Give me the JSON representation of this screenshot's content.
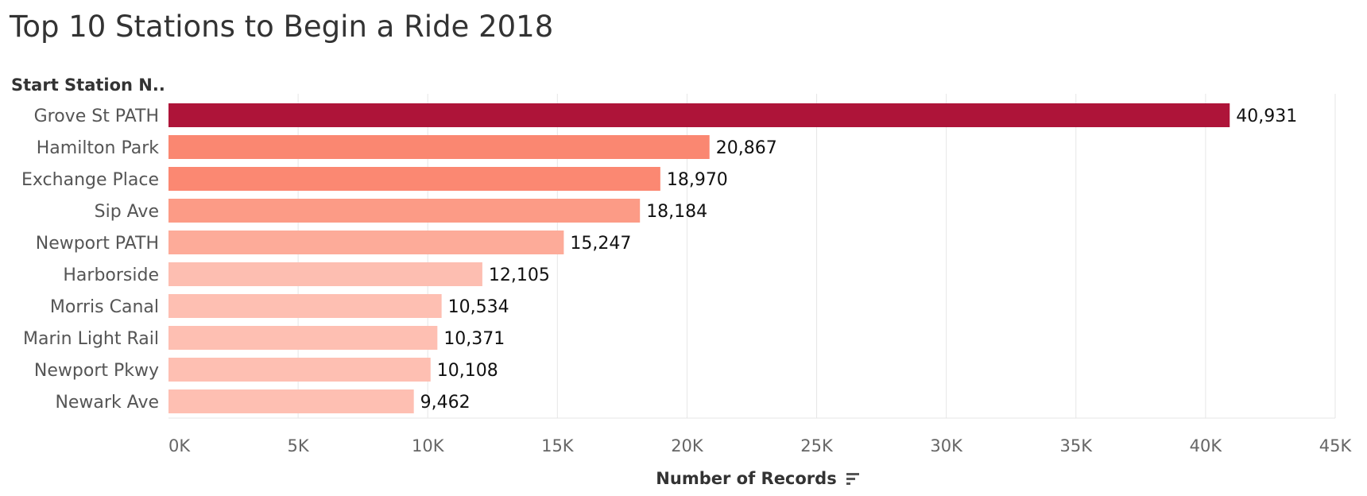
{
  "header": {
    "title": "Top 10 Stations to Begin a Ride 2018",
    "field_label": "Start Station N.."
  },
  "axis": {
    "title": "Number of Records",
    "sort_icon": "sort-descending-icon"
  },
  "colors": {
    "text": "#333333",
    "grid": "#e6e6e6",
    "label": "#111111",
    "tick": "#666666"
  },
  "chart_data": {
    "type": "bar",
    "orientation": "horizontal",
    "title": "Top 10 Stations to Begin a Ride 2018",
    "ylabel": "Start Station N..",
    "xlabel": "Number of Records",
    "xlim": [
      0,
      45000
    ],
    "grid": true,
    "categories": [
      "Grove St PATH",
      "Hamilton Park",
      "Exchange Place",
      "Sip Ave",
      "Newport PATH",
      "Harborside",
      "Morris Canal",
      "Marin Light Rail",
      "Newport Pkwy",
      "Newark Ave"
    ],
    "values": [
      40931,
      20867,
      18970,
      18184,
      15247,
      12105,
      10534,
      10371,
      10108,
      9462
    ],
    "value_labels": [
      "40,931",
      "20,867",
      "18,970",
      "18,184",
      "15,247",
      "12,105",
      "10,534",
      "10,371",
      "10,108",
      "9,462"
    ],
    "bar_colors": [
      "#ae1439",
      "#fa8771",
      "#fb8872",
      "#fc9b86",
      "#fdab99",
      "#fdbeb1",
      "#febfb2",
      "#febfb2",
      "#febfb2",
      "#febfb2"
    ],
    "ticks": [
      0,
      5000,
      10000,
      15000,
      20000,
      25000,
      30000,
      35000,
      40000,
      45000
    ],
    "tick_labels": [
      "0K",
      "5K",
      "10K",
      "15K",
      "20K",
      "25K",
      "30K",
      "35K",
      "40K",
      "45K"
    ]
  }
}
